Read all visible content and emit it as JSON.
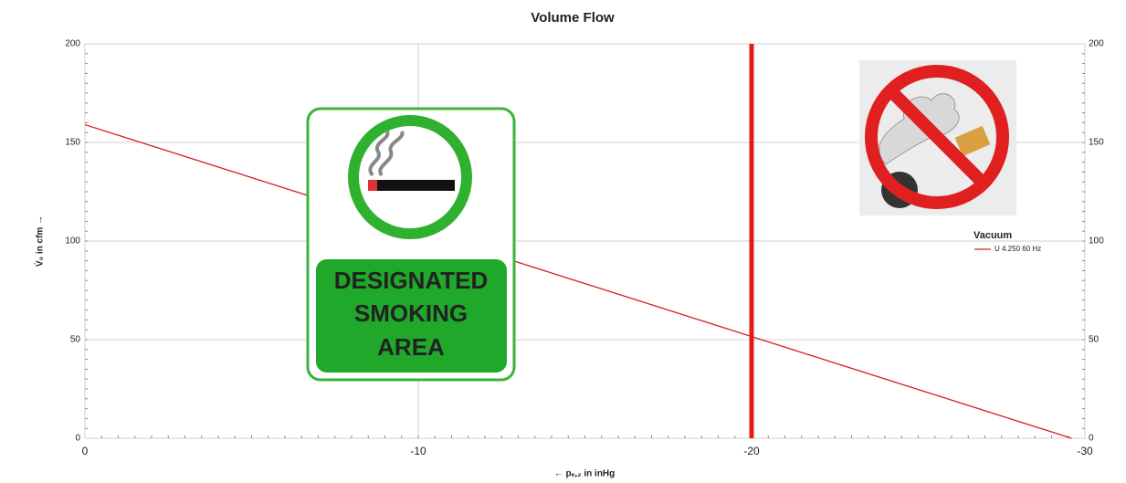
{
  "chart_data": {
    "type": "line",
    "title": "Volume Flow",
    "x_label": "← pₑ,₂ in inHg",
    "y_label": "V̇₀ in cfm →",
    "x": [
      0,
      -29.6
    ],
    "series": [
      {
        "name": "U 4.250 60 Hz",
        "color": "#d42020",
        "values": [
          159,
          0
        ]
      }
    ],
    "legend_title": "Vacuum",
    "xlim": [
      0,
      -30
    ],
    "xticks": [
      0,
      -10,
      -20,
      -30
    ],
    "ylim": [
      0,
      200
    ],
    "yticks": [
      0,
      50,
      100,
      150,
      200
    ],
    "grid": true,
    "vlines": [
      {
        "value": -20,
        "color": "#e41b1b"
      }
    ],
    "sign_text": [
      "DESIGNATED",
      "SMOKING",
      "AREA"
    ]
  }
}
